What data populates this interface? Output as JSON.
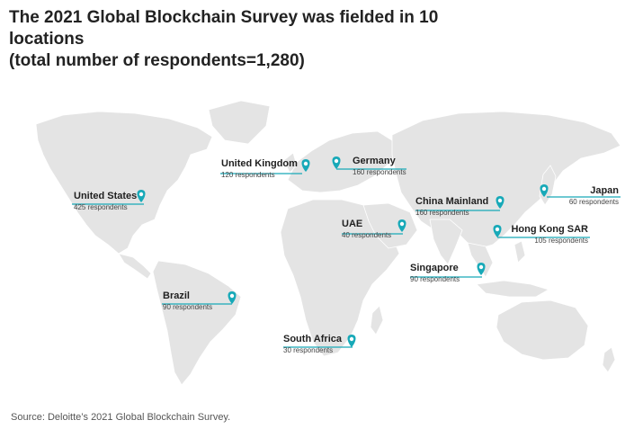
{
  "header": {
    "title_line1": "The 2021 Global Blockchain Survey was fielded in 10 locations",
    "title_line2": "(total number of respondents=1,280)"
  },
  "accent_color": "#17a9b8",
  "land_color": "#e4e4e4",
  "locations": [
    {
      "name": "United States",
      "respondents": "425 respondents"
    },
    {
      "name": "United Kingdom",
      "respondents": "120 respondents"
    },
    {
      "name": "Germany",
      "respondents": "160 respondents"
    },
    {
      "name": "China Mainland",
      "respondents": "160 respondents"
    },
    {
      "name": "Japan",
      "respondents": "60 respondents"
    },
    {
      "name": "UAE",
      "respondents": "40 respondents"
    },
    {
      "name": "Hong Kong SAR",
      "respondents": "105 respondents"
    },
    {
      "name": "Singapore",
      "respondents": "90 respondents"
    },
    {
      "name": "Brazil",
      "respondents": "90 respondents"
    },
    {
      "name": "South Africa",
      "respondents": "30 respondents"
    }
  ],
  "footer": {
    "source": "Source: Deloitte’s 2021 Global Blockchain Survey."
  },
  "marker_icon": "map-pin-icon"
}
